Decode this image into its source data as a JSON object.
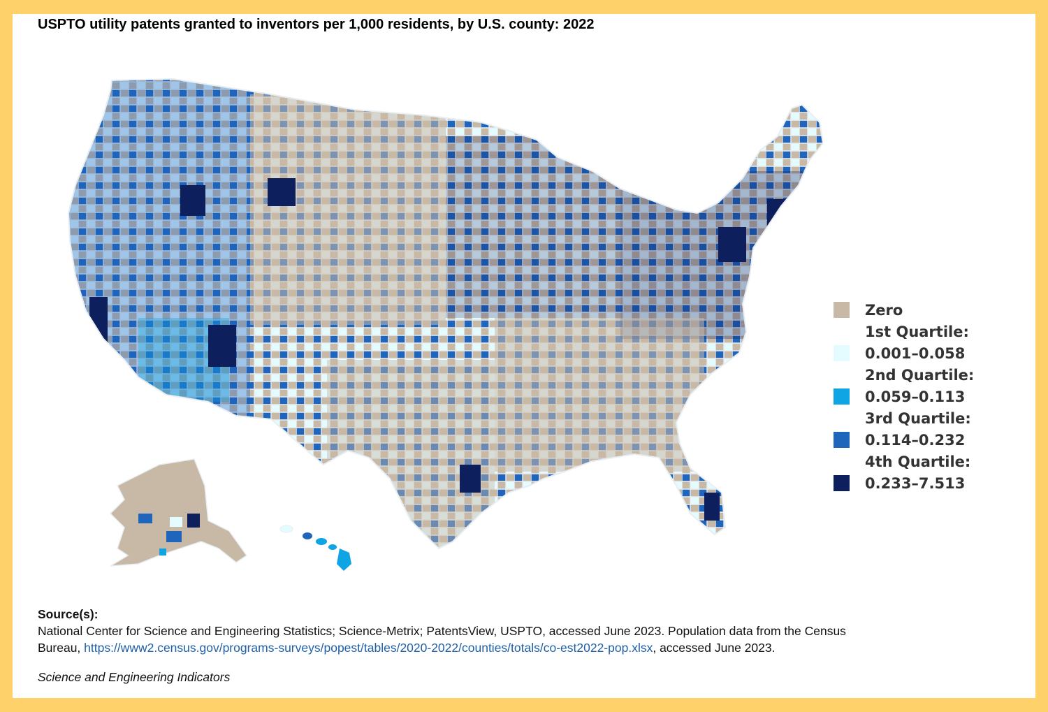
{
  "title": "USPTO utility patents granted to inventors per 1,000 residents, by U.S. county: 2022",
  "legend": {
    "zero_label": "Zero",
    "q1_title": "1st Quartile:",
    "q1_range": "0.001–0.058",
    "q2_title": "2nd Quartile:",
    "q2_range": "0.059–0.113",
    "q3_title": "3rd Quartile:",
    "q3_range": "0.114–0.232",
    "q4_title": "4th Quartile:",
    "q4_range": "0.233–7.513"
  },
  "colors": {
    "zero": "#c8b9a7",
    "q1": "#e4fbff",
    "q2": "#0fa4e3",
    "q3": "#2065bc",
    "q4": "#0d1f5d",
    "border": "#ffd16b",
    "county_border": "#e8eef2"
  },
  "source": {
    "label": "Source(s):",
    "line1": "National Center for Science and Engineering Statistics; Science-Metrix; PatentsView, USPTO, accessed June 2023. Population data from the Census",
    "line2_prefix": "Bureau, ",
    "link": "https://www2.census.gov/programs-surveys/popest/tables/2020-2022/counties/totals/co-est2022-pop.xlsx",
    "line2_suffix": ", accessed June 2023."
  },
  "footer": "Science and Engineering Indicators"
}
